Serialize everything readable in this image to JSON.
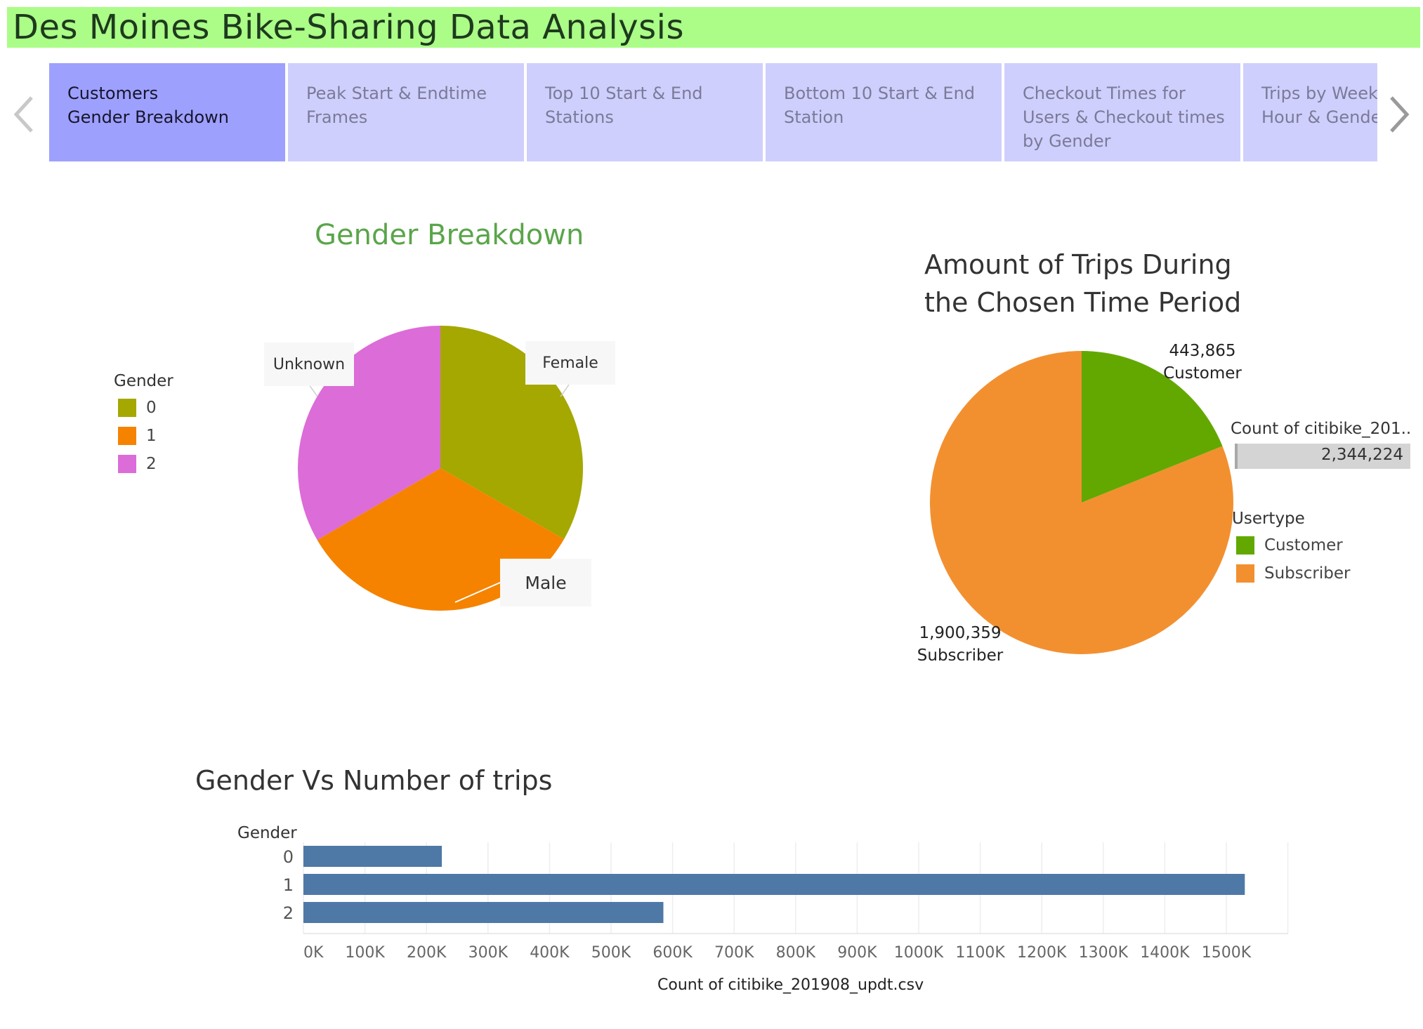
{
  "page": {
    "title": "Des Moines Bike-Sharing Data Analysis"
  },
  "tabs": [
    {
      "label": "Customers\nGender Breakdown",
      "active": true
    },
    {
      "label": "Peak Start & Endtime\nFrames",
      "active": false
    },
    {
      "label": "Top 10 Start & End\nStations",
      "active": false
    },
    {
      "label": "Bottom 10 Start & End\nStation",
      "active": false
    },
    {
      "label": "Checkout Times for\nUsers & Checkout times\nby Gender",
      "active": false
    },
    {
      "label": "Trips by Weekday per\nHour &  Gender",
      "active": false
    }
  ],
  "icons": {
    "prev": "chevron-left-icon",
    "next": "chevron-right-icon"
  },
  "colors": {
    "title_bar": "#abfd87",
    "tab_active": "#9ea0fd",
    "tab_inactive": "#cfcffd",
    "gender_0": "#a4a800",
    "gender_1": "#f58300",
    "gender_2": "#dc6cd7",
    "customer": "#62a800",
    "subscriber": "#f29030",
    "bar": "#4e79a7"
  },
  "chart_data": [
    {
      "type": "pie",
      "title": "Gender Breakdown",
      "legend": {
        "title": "Gender",
        "position": "left"
      },
      "slices": [
        {
          "category": "0",
          "share": 0.333,
          "label": "Female",
          "color": "#a4a800"
        },
        {
          "category": "1",
          "share": 0.333,
          "label": "Male",
          "color": "#f58300"
        },
        {
          "category": "2",
          "share": 0.334,
          "label": "Unknown",
          "color": "#dc6cd7"
        }
      ]
    },
    {
      "type": "pie",
      "title": "Amount of Trips During\nthe Chosen Time Period",
      "legend": {
        "title": "Usertype",
        "position": "right"
      },
      "total_label": "Count of citibike_201..",
      "total_value": "2,344,224",
      "total": 2344224,
      "slices": [
        {
          "category": "Customer",
          "value": 443865,
          "value_label": "443,865",
          "color": "#62a800"
        },
        {
          "category": "Subscriber",
          "value": 1900359,
          "value_label": "1,900,359",
          "color": "#f29030"
        }
      ]
    },
    {
      "type": "bar",
      "orientation": "horizontal",
      "title": "Gender Vs Number of trips",
      "ylabel": "Gender",
      "xlabel": "Count of citibike_201908_updt.csv",
      "categories": [
        "0",
        "1",
        "2"
      ],
      "values": [
        225000,
        1530000,
        585000
      ],
      "xlim": [
        0,
        1600000
      ],
      "xticks": [
        "0K",
        "100K",
        "200K",
        "300K",
        "400K",
        "500K",
        "600K",
        "700K",
        "800K",
        "900K",
        "1000K",
        "1100K",
        "1200K",
        "1300K",
        "1400K",
        "1500K"
      ],
      "grid": true,
      "color": "#4e79a7"
    }
  ]
}
